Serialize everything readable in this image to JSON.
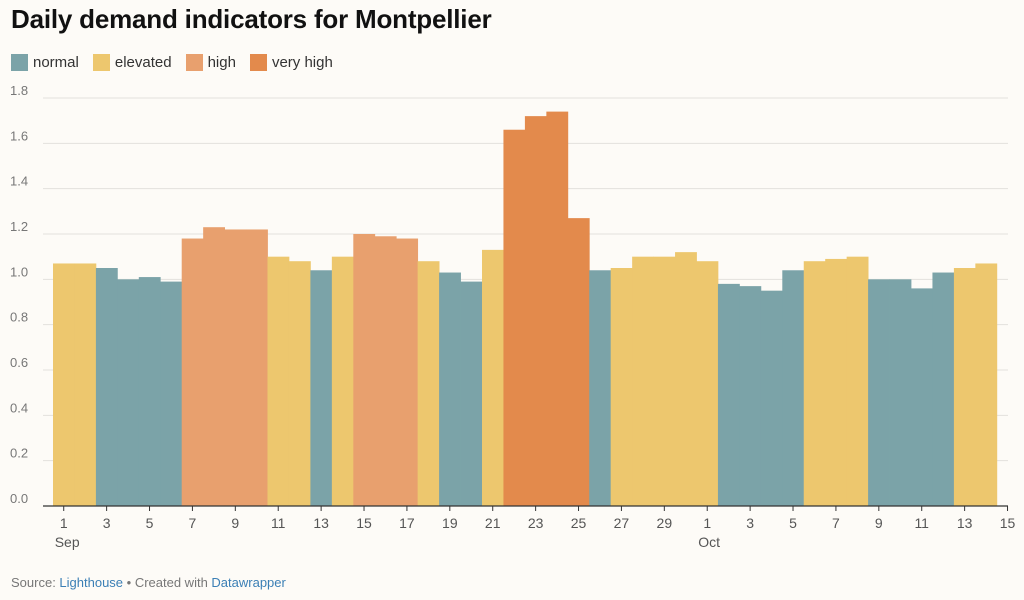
{
  "chart_data": {
    "type": "bar",
    "title": "Daily demand indicators for Montpellier",
    "xlabel": "",
    "ylabel": "",
    "ylim": [
      0,
      1.8
    ],
    "yticks": [
      "0.0",
      "0.2",
      "0.4",
      "0.6",
      "0.8",
      "1.0",
      "1.2",
      "1.4",
      "1.6",
      "1.8"
    ],
    "grid": true,
    "legend": [
      {
        "key": "normal",
        "label": "normal",
        "color": "#7ba3a8"
      },
      {
        "key": "elevated",
        "label": "elevated",
        "color": "#edc76e"
      },
      {
        "key": "high",
        "label": "high",
        "color": "#e8a06e"
      },
      {
        "key": "very_high",
        "label": "very high",
        "color": "#e38a4c"
      }
    ],
    "x_tick_labels": [
      {
        "index": 0,
        "label": "1",
        "sub": "Sep"
      },
      {
        "index": 2,
        "label": "3"
      },
      {
        "index": 4,
        "label": "5"
      },
      {
        "index": 6,
        "label": "7"
      },
      {
        "index": 8,
        "label": "9"
      },
      {
        "index": 10,
        "label": "11"
      },
      {
        "index": 12,
        "label": "13"
      },
      {
        "index": 14,
        "label": "15"
      },
      {
        "index": 16,
        "label": "17"
      },
      {
        "index": 18,
        "label": "19"
      },
      {
        "index": 20,
        "label": "21"
      },
      {
        "index": 22,
        "label": "23"
      },
      {
        "index": 24,
        "label": "25"
      },
      {
        "index": 26,
        "label": "27"
      },
      {
        "index": 28,
        "label": "29"
      },
      {
        "index": 30,
        "label": "1",
        "sub": "Oct"
      },
      {
        "index": 32,
        "label": "3"
      },
      {
        "index": 34,
        "label": "5"
      },
      {
        "index": 36,
        "label": "7"
      },
      {
        "index": 38,
        "label": "9"
      },
      {
        "index": 40,
        "label": "11"
      },
      {
        "index": 42,
        "label": "13"
      },
      {
        "index": 44,
        "label": "15"
      }
    ],
    "values": [
      1.07,
      1.07,
      1.05,
      1.0,
      1.01,
      0.99,
      1.18,
      1.23,
      1.22,
      1.22,
      1.1,
      1.08,
      1.04,
      1.1,
      1.2,
      1.19,
      1.18,
      1.08,
      1.03,
      0.99,
      1.13,
      1.66,
      1.72,
      1.74,
      1.27,
      1.04,
      1.05,
      1.1,
      1.1,
      1.12,
      1.08,
      0.98,
      0.97,
      0.95,
      1.04,
      1.08,
      1.09,
      1.1,
      1.0,
      1.0,
      0.96,
      1.03,
      1.05,
      1.07
    ],
    "levels": [
      "elevated",
      "elevated",
      "normal",
      "normal",
      "normal",
      "normal",
      "high",
      "high",
      "high",
      "high",
      "elevated",
      "elevated",
      "normal",
      "elevated",
      "high",
      "high",
      "high",
      "elevated",
      "normal",
      "normal",
      "elevated",
      "very_high",
      "very_high",
      "very_high",
      "very_high",
      "normal",
      "elevated",
      "elevated",
      "elevated",
      "elevated",
      "elevated",
      "normal",
      "normal",
      "normal",
      "normal",
      "elevated",
      "elevated",
      "elevated",
      "normal",
      "normal",
      "normal",
      "normal",
      "elevated",
      "elevated"
    ]
  },
  "footer": {
    "source_prefix": "Source: ",
    "source_name": "Lighthouse",
    "separator": " • Created with ",
    "tool_name": "Datawrapper"
  }
}
